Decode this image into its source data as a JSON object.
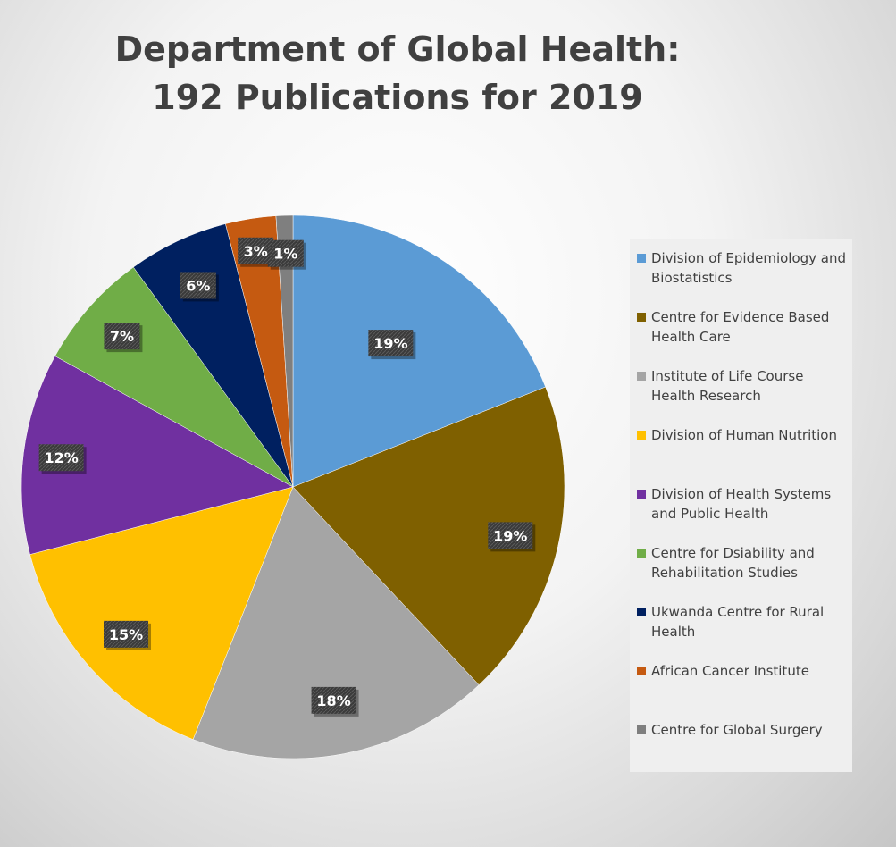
{
  "chart_data": {
    "type": "pie",
    "title_lines": [
      "Department of Global Health:",
      "192 Publications for 2019"
    ],
    "legend_position": "right",
    "slices": [
      {
        "name": "Division of Epidemiology and Biostatistics",
        "value": 19,
        "label": "19%",
        "color": "#5b9bd5"
      },
      {
        "name": "Centre for Evidence Based Health Care",
        "value": 19,
        "label": "19%",
        "color": "#7f6000"
      },
      {
        "name": "Institute of Life Course Health Research",
        "value": 18,
        "label": "18%",
        "color": "#a5a5a5"
      },
      {
        "name": "Division of Human Nutrition",
        "value": 15,
        "label": "15%",
        "color": "#ffc000"
      },
      {
        "name": "Division of Health Systems and Public Health",
        "value": 12,
        "label": "12%",
        "color": "#7030a0"
      },
      {
        "name": "Centre for Dsiability and Rehabilitation Studies",
        "value": 7,
        "label": "7%",
        "color": "#70ad47"
      },
      {
        "name": "Ukwanda Centre for Rural Health",
        "value": 6,
        "label": "6%",
        "color": "#002060"
      },
      {
        "name": "African Cancer Institute",
        "value": 3,
        "label": "3%",
        "color": "#c55a11"
      },
      {
        "name": "Centre for Global Surgery",
        "value": 1,
        "label": "1%",
        "color": "#7f7f7f"
      }
    ]
  }
}
